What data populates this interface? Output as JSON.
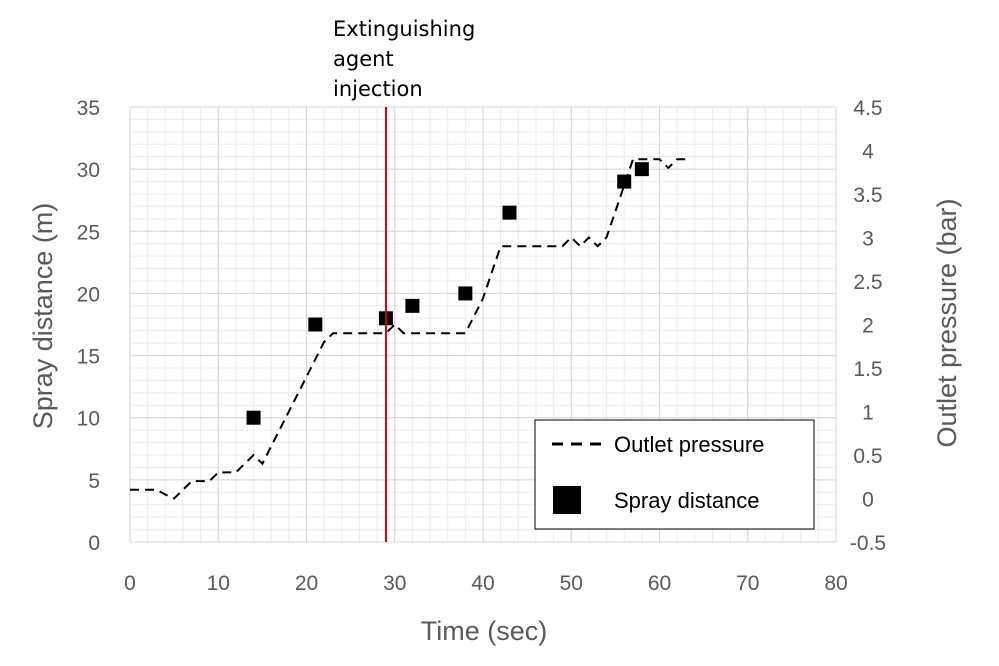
{
  "chart_data": {
    "type": "line",
    "xlabel": "Time (sec)",
    "ylabel": "Spray distance (m)",
    "y2label": "Outlet pressure (bar)",
    "xlim": [
      0,
      80
    ],
    "ylim": [
      0,
      35
    ],
    "y2lim": [
      -0.5,
      4.5
    ],
    "x_ticks": [
      "0",
      "10",
      "20",
      "30",
      "40",
      "50",
      "60",
      "70",
      "80"
    ],
    "y_ticks": [
      "0",
      "5",
      "10",
      "15",
      "20",
      "25",
      "30",
      "35"
    ],
    "y2_ticks": [
      "-0.5",
      "0",
      "0.5",
      "1",
      "1.5",
      "2",
      "2.5",
      "3",
      "3.5",
      "4",
      "4.5"
    ],
    "grid": true,
    "legend_position": "bottom-right",
    "annotation": {
      "lines": [
        "Extinguishing",
        "agent",
        "injection"
      ],
      "x": 29,
      "color": "#d00000"
    },
    "series": [
      {
        "name": "Outlet pressure",
        "type": "line",
        "style": "dashed",
        "axis": "right",
        "color": "#000000",
        "x": [
          0,
          1.5,
          3,
          4.5,
          5,
          6,
          7,
          8,
          9,
          10,
          11,
          12,
          13,
          14,
          15,
          16,
          17,
          18,
          19,
          20,
          21,
          22,
          23,
          24,
          25,
          26,
          27,
          28,
          29,
          30,
          31,
          32,
          33,
          34,
          35,
          36,
          37,
          38,
          39,
          40,
          41,
          42,
          43,
          44,
          45,
          46,
          47,
          48,
          49,
          50,
          51,
          52,
          53,
          54,
          55,
          56,
          57,
          58,
          59,
          60,
          61,
          62,
          63
        ],
        "y": [
          0.1,
          0.1,
          0.1,
          0.02,
          0.0,
          0.1,
          0.2,
          0.2,
          0.2,
          0.3,
          0.3,
          0.3,
          0.4,
          0.5,
          0.4,
          0.6,
          0.8,
          1.0,
          1.2,
          1.4,
          1.6,
          1.8,
          1.9,
          1.9,
          1.9,
          1.9,
          1.9,
          1.9,
          1.9,
          2.0,
          1.9,
          1.9,
          1.9,
          1.9,
          1.9,
          1.9,
          1.9,
          1.9,
          2.1,
          2.3,
          2.6,
          2.9,
          2.9,
          2.9,
          2.9,
          2.9,
          2.9,
          2.9,
          2.9,
          3.0,
          2.9,
          3.0,
          2.9,
          3.0,
          3.3,
          3.6,
          3.9,
          3.9,
          3.9,
          3.9,
          3.8,
          3.9,
          3.9
        ]
      },
      {
        "name": "Spray distance",
        "type": "scatter",
        "marker": "square",
        "axis": "left",
        "color": "#000000",
        "x": [
          14,
          21,
          29,
          32,
          38,
          43,
          56,
          58
        ],
        "y": [
          10,
          17.5,
          18,
          19,
          20,
          26.5,
          29,
          30
        ]
      }
    ]
  }
}
